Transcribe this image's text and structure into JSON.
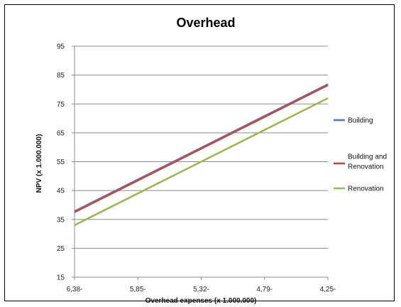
{
  "chart_data": {
    "type": "line",
    "title": "Overhead",
    "xlabel": "Overhead expenses (x 1.000.000)",
    "ylabel": "NPV (x 1.000.000)",
    "categories": [
      "6,38-",
      "5,85-",
      "5,32-",
      "4,79-",
      "4,25-"
    ],
    "ylim": [
      15,
      95
    ],
    "yticks": [
      15,
      25,
      35,
      45,
      55,
      65,
      75,
      85,
      95
    ],
    "grid": true,
    "legend_position": "right",
    "series": [
      {
        "name": "Building",
        "color": "#4a7ebb",
        "values": [
          37.8,
          48.8,
          59.8,
          70.8,
          81.8
        ]
      },
      {
        "name": "Building and Renovation",
        "color": "#be4b48",
        "values": [
          37.5,
          48.5,
          59.5,
          70.5,
          81.5
        ]
      },
      {
        "name": "Renovation",
        "color": "#98b954",
        "values": [
          33.0,
          44.0,
          55.0,
          66.0,
          77.0
        ]
      }
    ]
  }
}
